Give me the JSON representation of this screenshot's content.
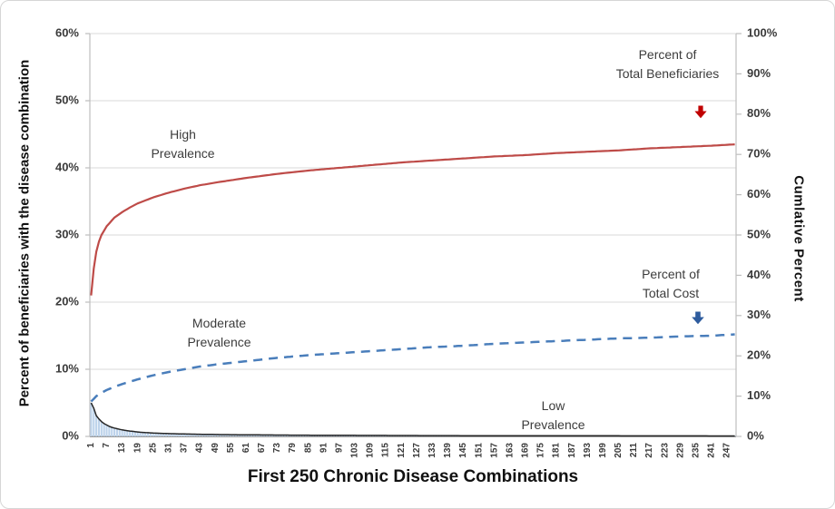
{
  "chart_data": {
    "type": "combo-bar-line",
    "title": "First 250 Chronic Disease Combinations",
    "x_axis": {
      "min": 1,
      "max": 250,
      "tick_labels": [
        1,
        7,
        13,
        19,
        25,
        31,
        37,
        43,
        49,
        55,
        61,
        67,
        73,
        79,
        85,
        91,
        97,
        103,
        109,
        115,
        121,
        127,
        133,
        139,
        145,
        151,
        157,
        163,
        169,
        175,
        181,
        187,
        193,
        199,
        205,
        211,
        217,
        223,
        229,
        235,
        241,
        247
      ]
    },
    "left_axis": {
      "label": "Percent of beneficiaries with the disease combination",
      "min": 0,
      "max": 60,
      "ticks": [
        "0%",
        "10%",
        "20%",
        "30%",
        "40%",
        "50%",
        "60%"
      ]
    },
    "right_axis": {
      "label": "Cumlative Percent",
      "min": 0,
      "max": 100,
      "ticks": [
        "0%",
        "10%",
        "20%",
        "30%",
        "40%",
        "50%",
        "60%",
        "70%",
        "80%",
        "90%",
        "100%"
      ]
    },
    "grid": "horizontal-only",
    "series_units": "left_axis_percent",
    "series": [
      {
        "name": "combination-prevalence",
        "type": "bar-with-line",
        "bar_color": "#bdd3eb",
        "line_color": "#262626",
        "anchors": [
          [
            1,
            5.0
          ],
          [
            2,
            4.2
          ],
          [
            3,
            3.1
          ],
          [
            4,
            2.6
          ],
          [
            5,
            2.2
          ],
          [
            6,
            1.9
          ],
          [
            7,
            1.7
          ],
          [
            8,
            1.5
          ],
          [
            9,
            1.35
          ],
          [
            10,
            1.25
          ],
          [
            12,
            1.05
          ],
          [
            14,
            0.9
          ],
          [
            16,
            0.8
          ],
          [
            18,
            0.7
          ],
          [
            20,
            0.62
          ],
          [
            25,
            0.5
          ],
          [
            30,
            0.43
          ],
          [
            35,
            0.38
          ],
          [
            40,
            0.34
          ],
          [
            50,
            0.28
          ],
          [
            60,
            0.24
          ],
          [
            75,
            0.2
          ],
          [
            100,
            0.16
          ],
          [
            125,
            0.13
          ],
          [
            150,
            0.11
          ],
          [
            175,
            0.1
          ],
          [
            200,
            0.09
          ],
          [
            225,
            0.08
          ],
          [
            250,
            0.07
          ]
        ]
      },
      {
        "name": "percent-of-total-beneficiaries-cumulative",
        "type": "line",
        "style": "solid",
        "color": "#be4b48",
        "anchors": [
          [
            1,
            21.0
          ],
          [
            2,
            25.0
          ],
          [
            3,
            27.5
          ],
          [
            4,
            29.0
          ],
          [
            5,
            30.0
          ],
          [
            7,
            31.3
          ],
          [
            10,
            32.6
          ],
          [
            13,
            33.4
          ],
          [
            16,
            34.1
          ],
          [
            19,
            34.7
          ],
          [
            25,
            35.6
          ],
          [
            31,
            36.3
          ],
          [
            37,
            36.9
          ],
          [
            43,
            37.4
          ],
          [
            49,
            37.8
          ],
          [
            61,
            38.5
          ],
          [
            73,
            39.1
          ],
          [
            85,
            39.6
          ],
          [
            97,
            40.0
          ],
          [
            109,
            40.4
          ],
          [
            121,
            40.8
          ],
          [
            133,
            41.1
          ],
          [
            145,
            41.4
          ],
          [
            157,
            41.7
          ],
          [
            169,
            41.9
          ],
          [
            181,
            42.2
          ],
          [
            193,
            42.4
          ],
          [
            205,
            42.6
          ],
          [
            217,
            42.9
          ],
          [
            229,
            43.1
          ],
          [
            241,
            43.3
          ],
          [
            250,
            43.5
          ]
        ]
      },
      {
        "name": "percent-of-total-cost-cumulative",
        "type": "line",
        "style": "dashed",
        "color": "#4a7ebb",
        "anchors": [
          [
            1,
            5.2
          ],
          [
            3,
            6.0
          ],
          [
            5,
            6.5
          ],
          [
            7,
            6.9
          ],
          [
            10,
            7.4
          ],
          [
            13,
            7.8
          ],
          [
            19,
            8.5
          ],
          [
            25,
            9.1
          ],
          [
            31,
            9.6
          ],
          [
            37,
            10.0
          ],
          [
            43,
            10.4
          ],
          [
            49,
            10.7
          ],
          [
            61,
            11.2
          ],
          [
            73,
            11.7
          ],
          [
            85,
            12.1
          ],
          [
            97,
            12.4
          ],
          [
            109,
            12.7
          ],
          [
            121,
            13.0
          ],
          [
            133,
            13.3
          ],
          [
            145,
            13.5
          ],
          [
            157,
            13.8
          ],
          [
            169,
            14.0
          ],
          [
            181,
            14.2
          ],
          [
            193,
            14.4
          ],
          [
            205,
            14.6
          ],
          [
            217,
            14.7
          ],
          [
            229,
            14.9
          ],
          [
            241,
            15.0
          ],
          [
            250,
            15.2
          ]
        ]
      }
    ],
    "annotations": {
      "high_prevalence": "High\nPrevalence",
      "moderate_prevalence": "Moderate\nPrevalence",
      "low_prevalence": "Low\nPrevalence",
      "total_beneficiaries": "Percent of\nTotal Beneficiaries",
      "total_cost": "Percent of\nTotal Cost"
    },
    "colors": {
      "red_line": "#be4b48",
      "red_arrow": "#c00000",
      "blue_line": "#4a7ebb",
      "blue_arrow": "#2e5c9e",
      "bar_fill": "#bdd3eb",
      "black_line": "#262626",
      "gridline": "#d8d8d8",
      "axis_line": "#bfbfbf",
      "bottom_axis_line": "#7f7f7f",
      "tick_text": "#3a3a3a"
    }
  }
}
